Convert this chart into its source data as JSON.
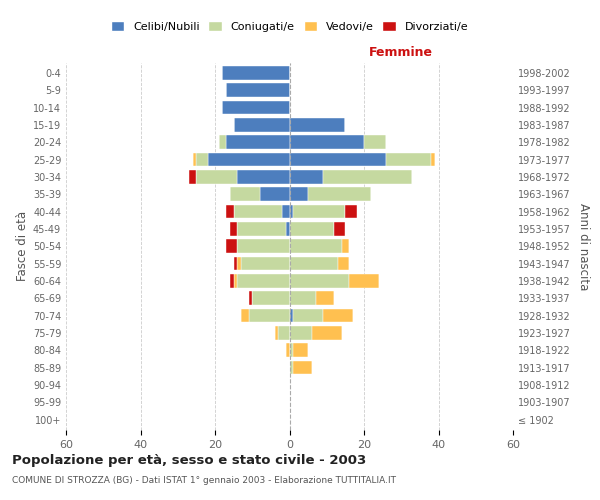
{
  "age_groups": [
    "100+",
    "95-99",
    "90-94",
    "85-89",
    "80-84",
    "75-79",
    "70-74",
    "65-69",
    "60-64",
    "55-59",
    "50-54",
    "45-49",
    "40-44",
    "35-39",
    "30-34",
    "25-29",
    "20-24",
    "15-19",
    "10-14",
    "5-9",
    "0-4"
  ],
  "birth_years": [
    "≤ 1902",
    "1903-1907",
    "1908-1912",
    "1913-1917",
    "1918-1922",
    "1923-1927",
    "1928-1932",
    "1933-1937",
    "1938-1942",
    "1943-1947",
    "1948-1952",
    "1953-1957",
    "1958-1962",
    "1963-1967",
    "1968-1972",
    "1973-1977",
    "1978-1982",
    "1983-1987",
    "1988-1992",
    "1993-1997",
    "1998-2002"
  ],
  "males": {
    "celibi": [
      0,
      0,
      0,
      0,
      0,
      0,
      0,
      0,
      0,
      0,
      0,
      1,
      2,
      8,
      14,
      22,
      17,
      15,
      18,
      17,
      18
    ],
    "coniugati": [
      0,
      0,
      0,
      0,
      0,
      3,
      11,
      10,
      14,
      13,
      14,
      13,
      13,
      8,
      11,
      3,
      2,
      0,
      0,
      0,
      0
    ],
    "vedovi": [
      0,
      0,
      0,
      0,
      1,
      1,
      2,
      0,
      1,
      1,
      0,
      0,
      0,
      0,
      0,
      1,
      0,
      0,
      0,
      0,
      0
    ],
    "divorziati": [
      0,
      0,
      0,
      0,
      0,
      0,
      0,
      1,
      1,
      1,
      3,
      2,
      2,
      0,
      2,
      0,
      0,
      0,
      0,
      0,
      0
    ]
  },
  "females": {
    "nubili": [
      0,
      0,
      0,
      0,
      0,
      0,
      1,
      0,
      0,
      0,
      0,
      0,
      1,
      5,
      9,
      26,
      20,
      15,
      0,
      0,
      0
    ],
    "coniugate": [
      0,
      0,
      0,
      1,
      1,
      6,
      8,
      7,
      16,
      13,
      14,
      12,
      14,
      17,
      24,
      12,
      6,
      0,
      0,
      0,
      0
    ],
    "vedove": [
      0,
      0,
      0,
      5,
      4,
      8,
      8,
      5,
      8,
      3,
      2,
      0,
      0,
      0,
      0,
      1,
      0,
      0,
      0,
      0,
      0
    ],
    "divorziate": [
      0,
      0,
      0,
      0,
      0,
      0,
      0,
      0,
      0,
      0,
      0,
      3,
      3,
      0,
      0,
      0,
      0,
      0,
      0,
      0,
      0
    ]
  },
  "colors": {
    "celibi": "#4d7ebe",
    "coniugati": "#c5d9a0",
    "vedovi": "#ffc050",
    "divorziati": "#cc1111"
  },
  "xlim": 60,
  "title": "Popolazione per età, sesso e stato civile - 2003",
  "subtitle": "COMUNE DI STROZZA (BG) - Dati ISTAT 1° gennaio 2003 - Elaborazione TUTTITALIA.IT",
  "xlabel_right": "Femmine",
  "ylabel_left": "Fasce di età",
  "ylabel_right": "Anni di nascita",
  "bg_color": "#ffffff",
  "grid_color": "#cccccc"
}
